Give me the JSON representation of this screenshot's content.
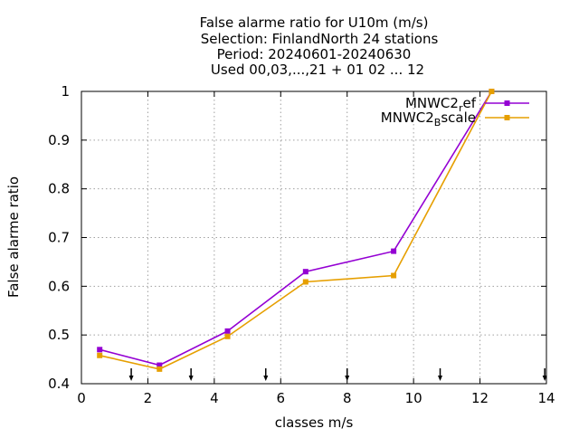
{
  "chart_data": {
    "type": "line",
    "title": [
      "False alarme ratio  for U10m (m/s)",
      "Selection: FinlandNorth     24 stations",
      "Period: 20240601-20240630",
      "Used 00,03,...,21 + 01 02 ... 12"
    ],
    "xlabel": "classes m/s",
    "ylabel": "False alarme ratio",
    "xlim": [
      0,
      14
    ],
    "ylim": [
      0.4,
      1
    ],
    "x_ticks": [
      "0",
      "2",
      "4",
      "6",
      "8",
      "10",
      "12",
      "14"
    ],
    "y_ticks": [
      "0.4",
      "0.5",
      "0.6",
      "0.7",
      "0.8",
      "0.9",
      "1"
    ],
    "grid": true,
    "legend_position": "top-right",
    "series": [
      {
        "name": "MNWC2_ref",
        "legend_main": "MNWC2",
        "legend_sub": "r",
        "legend_tail": "ef",
        "color": "#9400d3",
        "x": [
          0.55,
          2.35,
          4.4,
          6.75,
          9.4,
          12.35
        ],
        "values": [
          0.47,
          0.438,
          0.508,
          0.63,
          0.672,
          1.0
        ]
      },
      {
        "name": "MNWC2_Bscale",
        "legend_main": "MNWC2",
        "legend_sub": "B",
        "legend_tail": "scale",
        "color": "#e69f00",
        "x": [
          0.55,
          2.35,
          4.4,
          6.75,
          9.4,
          12.35
        ],
        "values": [
          0.458,
          0.43,
          0.497,
          0.609,
          0.622,
          1.0
        ]
      }
    ],
    "class_boundary_arrows_x": [
      1.5,
      3.3,
      5.55,
      8.0,
      10.8,
      13.95
    ]
  }
}
